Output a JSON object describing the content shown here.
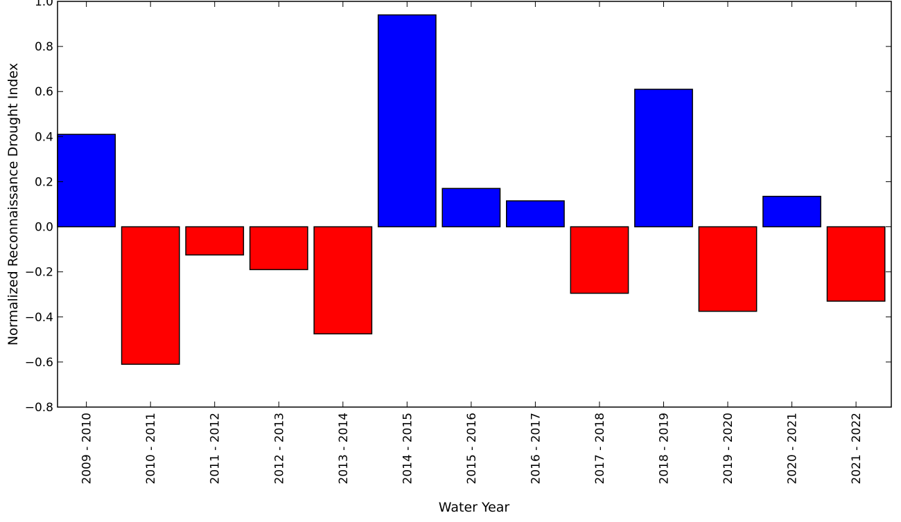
{
  "chart_data": {
    "type": "bar",
    "title": "",
    "xlabel": "Water Year",
    "ylabel": "Normalized Reconnaissance Drought Index",
    "categories": [
      "2009 - 2010",
      "2010 - 2011",
      "2011 - 2012",
      "2012 - 2013",
      "2013 - 2014",
      "2014 - 2015",
      "2015 - 2016",
      "2016 - 2017",
      "2017 - 2018",
      "2018 - 2019",
      "2019 - 2020",
      "2020 - 2021",
      "2021 - 2022"
    ],
    "values": [
      0.41,
      -0.61,
      -0.125,
      -0.19,
      -0.475,
      0.94,
      0.17,
      0.115,
      -0.295,
      0.61,
      -0.375,
      0.135,
      -0.33
    ],
    "ylim": [
      -0.8,
      1.0
    ],
    "yticks": [
      -0.8,
      -0.6,
      -0.4,
      -0.2,
      0.0,
      0.2,
      0.4,
      0.6,
      0.8,
      1.0
    ],
    "ytick_labels": [
      "−0.8",
      "−0.6",
      "−0.4",
      "−0.2",
      "0.0",
      "0.2",
      "0.4",
      "0.6",
      "0.8",
      "1.0"
    ],
    "grid": false,
    "colors": {
      "positive": "#0000ff",
      "negative": "#ff0000",
      "edge": "#000000"
    }
  }
}
